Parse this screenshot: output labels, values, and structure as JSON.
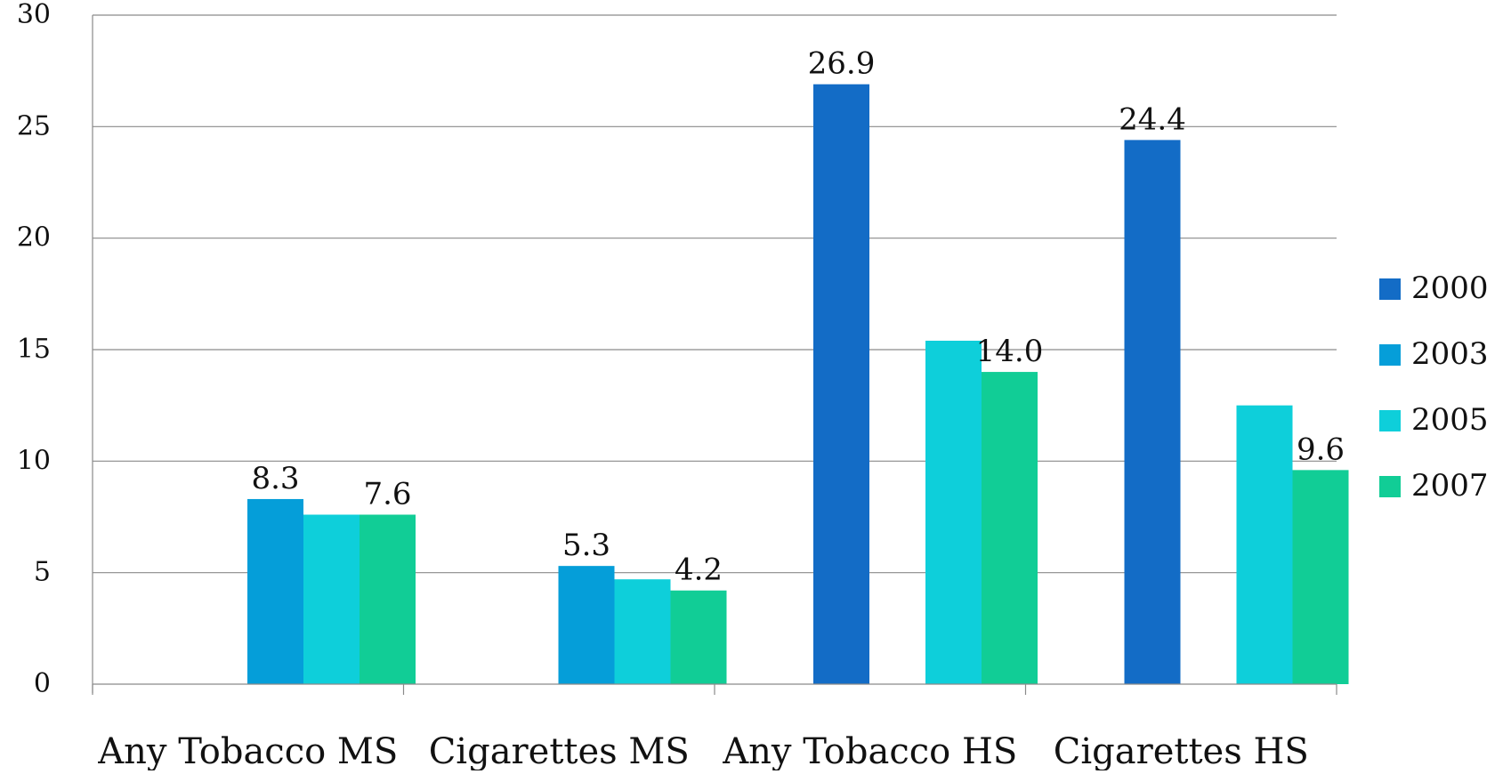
{
  "chart_data": {
    "type": "bar",
    "categories": [
      "Any Tobacco MS",
      "Cigarettes MS",
      "Any Tobacco HS",
      "Cigarettes HS"
    ],
    "series": [
      {
        "name": "2000",
        "color": "#136cc6",
        "values": [
          null,
          null,
          26.9,
          24.4
        ],
        "labels": [
          "",
          "",
          "26.9",
          "24.4"
        ]
      },
      {
        "name": "2003",
        "color": "#059ed9",
        "values": [
          8.3,
          5.3,
          null,
          null
        ],
        "labels": [
          "8.3",
          "5.3",
          "",
          ""
        ]
      },
      {
        "name": "2005",
        "color": "#0ecfda",
        "values": [
          7.6,
          4.7,
          15.4,
          12.5
        ],
        "labels": [
          "",
          "",
          "",
          ""
        ]
      },
      {
        "name": "2007",
        "color": "#11cd96",
        "values": [
          7.6,
          4.2,
          14.0,
          9.6
        ],
        "labels": [
          "7.6",
          "4.2",
          "14.0",
          "9.6"
        ]
      }
    ],
    "y_ticks": [
      "0",
      "5",
      "10",
      "15",
      "20",
      "25",
      "30"
    ],
    "ylim": [
      0,
      30
    ],
    "grid": true,
    "legend_position": "right"
  }
}
